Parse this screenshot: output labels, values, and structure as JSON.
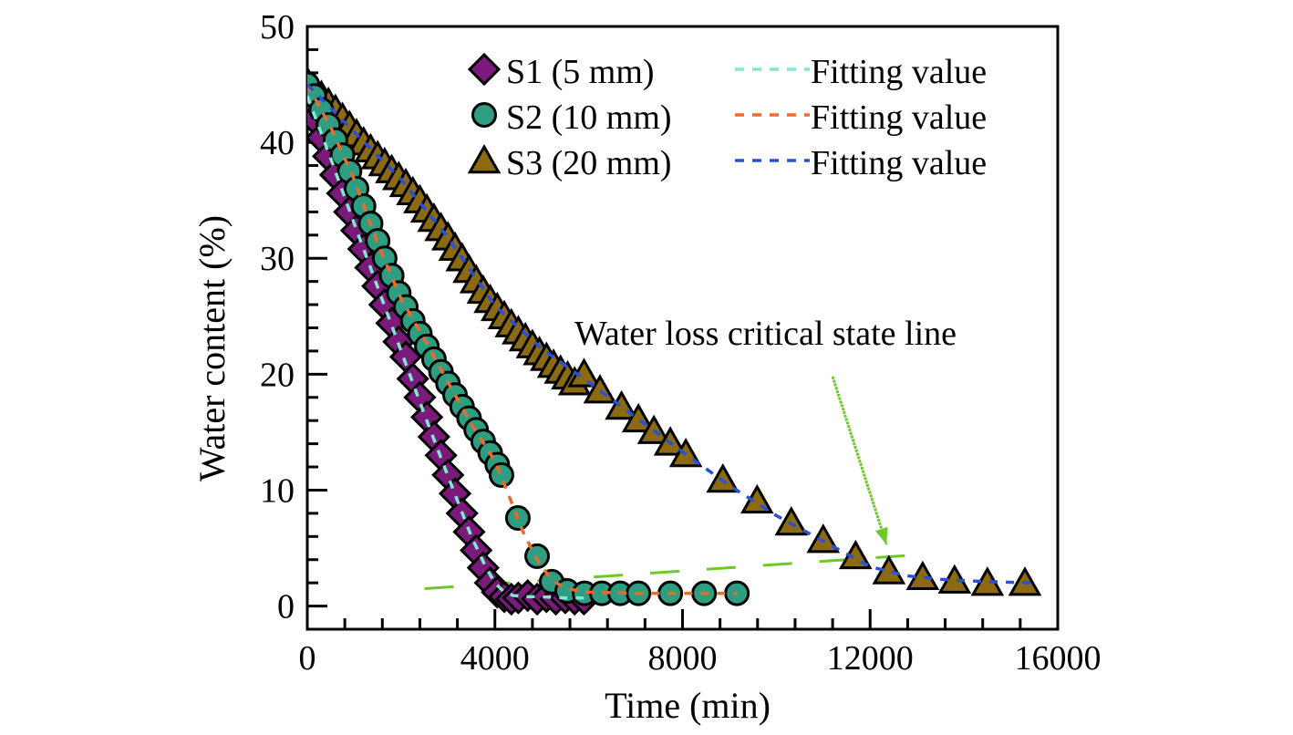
{
  "chart_data": {
    "type": "scatter",
    "title": "",
    "xlabel": "Time (min)",
    "ylabel": "Water content (%)",
    "xlim": [
      0,
      16000
    ],
    "ylim": [
      -2,
      50
    ],
    "x_ticks": [
      0,
      4000,
      8000,
      12000,
      16000
    ],
    "x_tick_labels": [
      "0",
      "4000",
      "8000",
      "12000",
      "16000"
    ],
    "x_minor_step": 800,
    "y_ticks": [
      0,
      10,
      20,
      30,
      40,
      50
    ],
    "y_tick_labels": [
      "0",
      "10",
      "20",
      "30",
      "40",
      "50"
    ],
    "y_minor_step": 2,
    "grid": false,
    "legend_position": "top-right",
    "series": [
      {
        "name": "S1 (5 mm)",
        "marker": "diamond",
        "color": "#7B1A7B",
        "fit_name": "Fitting value",
        "fit_color": "#7FE8D2",
        "x": [
          0,
          150,
          300,
          450,
          600,
          750,
          900,
          1050,
          1200,
          1350,
          1500,
          1650,
          1800,
          1950,
          2100,
          2250,
          2400,
          2550,
          2700,
          2850,
          3000,
          3150,
          3300,
          3450,
          3600,
          3750,
          3900,
          4050,
          4200,
          4350,
          4500,
          4700,
          4900,
          5100,
          5300,
          5500,
          5700,
          5900
        ],
        "y": [
          43.6,
          42.0,
          40.4,
          38.8,
          37.2,
          35.6,
          34.0,
          32.4,
          30.8,
          29.2,
          27.6,
          26.0,
          24.4,
          22.8,
          21.5,
          19.6,
          18.0,
          16.3,
          14.6,
          13.0,
          11.3,
          9.7,
          8.0,
          6.4,
          4.8,
          3.3,
          2.0,
          1.2,
          0.8,
          0.6,
          0.7,
          0.9,
          0.6,
          0.8,
          0.6,
          0.7,
          0.6,
          0.6
        ],
        "fit_x": [
          0,
          500,
          1000,
          1500,
          2000,
          2500,
          3000,
          3500,
          3800,
          4000,
          4200,
          4400,
          4700,
          5000,
          5500,
          5900
        ],
        "fit_y": [
          44.0,
          38.6,
          33.0,
          27.5,
          22.0,
          16.5,
          11.2,
          6.0,
          3.4,
          2.0,
          1.2,
          0.9,
          0.8,
          0.8,
          0.7,
          0.7
        ]
      },
      {
        "name": "S2 (10 mm)",
        "marker": "circle",
        "color": "#2E9E83",
        "fit_name": "Fitting value",
        "fit_color": "#EE6A2A",
        "x": [
          0,
          150,
          300,
          450,
          600,
          750,
          900,
          1050,
          1200,
          1350,
          1500,
          1650,
          1800,
          1950,
          2100,
          2250,
          2400,
          2550,
          2700,
          2850,
          3000,
          3150,
          3300,
          3450,
          3600,
          3750,
          3900,
          4050,
          4140,
          4490,
          4900,
          5210,
          5540,
          5910,
          6280,
          6670,
          7060,
          7740,
          8460,
          9160
        ],
        "y": [
          45.0,
          44.0,
          42.8,
          41.5,
          40.2,
          38.9,
          37.5,
          36.0,
          34.5,
          33.0,
          31.5,
          30.0,
          28.5,
          27.0,
          25.8,
          24.6,
          23.5,
          22.4,
          21.3,
          20.2,
          19.2,
          18.2,
          17.2,
          16.2,
          15.2,
          14.2,
          13.2,
          12.2,
          11.3,
          7.6,
          4.3,
          2.1,
          1.3,
          1.1,
          1.1,
          1.1,
          1.1,
          1.1,
          1.1,
          1.1
        ],
        "fit_x": [
          0,
          500,
          1000,
          1500,
          2000,
          2500,
          3000,
          3500,
          4000,
          4300,
          4600,
          4900,
          5200,
          5500,
          6000,
          7000,
          8000,
          9160
        ],
        "fit_y": [
          45.0,
          41.3,
          36.8,
          31.3,
          26.5,
          23.0,
          19.3,
          15.7,
          12.5,
          9.5,
          6.4,
          4.0,
          2.3,
          1.5,
          1.2,
          1.1,
          1.1,
          1.1
        ]
      },
      {
        "name": "S3 (20 mm)",
        "marker": "triangle",
        "color": "#8B6A12",
        "fit_name": "Fitting value",
        "fit_color": "#2850D8",
        "x": [
          0,
          150,
          300,
          450,
          600,
          750,
          900,
          1050,
          1200,
          1350,
          1500,
          1650,
          1800,
          1950,
          2100,
          2250,
          2400,
          2550,
          2700,
          2850,
          3000,
          3150,
          3300,
          3450,
          3600,
          3750,
          3900,
          4050,
          4200,
          4350,
          4500,
          4650,
          4800,
          4950,
          5100,
          5250,
          5400,
          5550,
          5700,
          5900,
          6240,
          6700,
          7060,
          7390,
          7740,
          8070,
          8860,
          9590,
          10320,
          11000,
          11690,
          12400,
          13120,
          13800,
          14500,
          15300
        ],
        "y": [
          45.2,
          44.6,
          44.0,
          43.4,
          42.8,
          42.1,
          41.4,
          40.7,
          40.0,
          39.4,
          38.8,
          38.2,
          37.6,
          37.0,
          36.4,
          35.7,
          35.0,
          34.2,
          33.4,
          32.6,
          31.8,
          30.9,
          30.0,
          29.0,
          28.1,
          27.2,
          26.4,
          25.7,
          25.0,
          24.3,
          23.7,
          23.1,
          22.5,
          21.9,
          21.4,
          20.8,
          20.3,
          19.8,
          19.3,
          20.0,
          18.6,
          17.2,
          16.1,
          15.1,
          14.1,
          13.1,
          10.9,
          9.1,
          7.2,
          5.7,
          4.3,
          3.0,
          2.5,
          2.2,
          2.0,
          2.0
        ],
        "fit_x": [
          0,
          1000,
          2000,
          3000,
          4000,
          5000,
          6000,
          7000,
          8000,
          9000,
          10000,
          11000,
          12000,
          12800,
          13500,
          14500,
          15500
        ],
        "fit_y": [
          45.0,
          40.9,
          36.8,
          31.8,
          25.9,
          22.2,
          19.3,
          16.3,
          13.3,
          10.4,
          7.8,
          5.6,
          3.4,
          2.6,
          2.3,
          2.1,
          2.0
        ]
      }
    ],
    "critical_line": {
      "color": "#6DC82A",
      "x": [
        2500,
        13300
      ],
      "y": [
        1.5,
        4.5
      ]
    },
    "annotations": [
      {
        "text": "Water loss critical state line",
        "arrow_from": [
          11200,
          19.8
        ],
        "arrow_to": [
          12350,
          5.3
        ],
        "color": "#6DC82A"
      }
    ]
  }
}
